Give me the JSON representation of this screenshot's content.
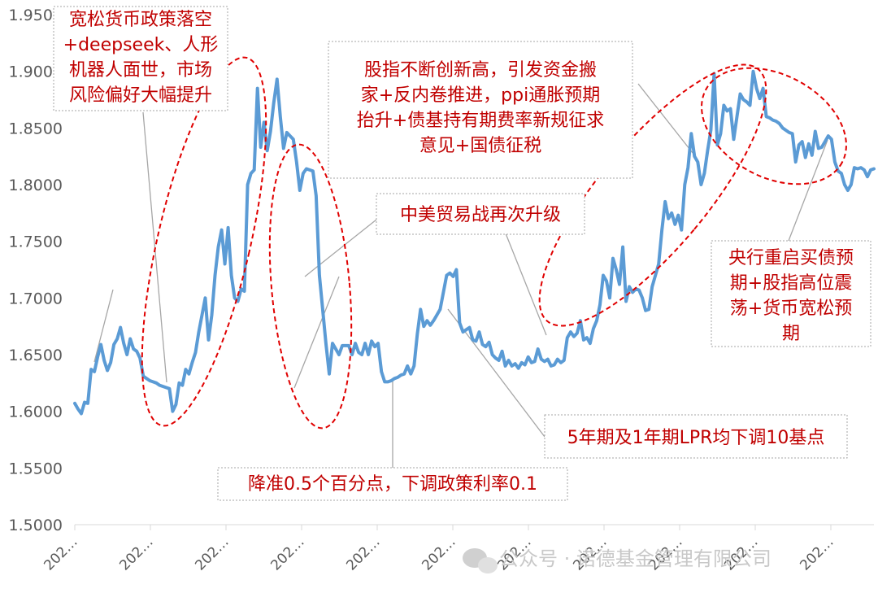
{
  "chart_data": {
    "type": "line",
    "title": "",
    "xlabel": "",
    "ylabel": "",
    "ylim": [
      1.5,
      1.95
    ],
    "y_ticks": [
      "1.5000",
      "1.5500",
      "1.6000",
      "1.6500",
      "1.7000",
      "1.7500",
      "1.8000",
      "1.8500",
      "1.9000",
      "1.9500"
    ],
    "x_ticks": [
      "202…",
      "202…",
      "202…",
      "202…",
      "202…",
      "202…",
      "202…",
      "202…",
      "202…",
      "202…",
      "202…"
    ],
    "grid": false,
    "legend": "none",
    "series": [
      {
        "color": "#5b9bd5",
        "values": [
          1.607,
          1.602,
          1.598,
          1.608,
          1.607,
          1.637,
          1.635,
          1.648,
          1.659,
          1.645,
          1.636,
          1.643,
          1.659,
          1.664,
          1.674,
          1.66,
          1.65,
          1.664,
          1.655,
          1.653,
          1.647,
          1.631,
          1.629,
          1.627,
          1.626,
          1.625,
          1.623,
          1.622,
          1.621,
          1.62,
          1.6,
          1.606,
          1.625,
          1.623,
          1.637,
          1.633,
          1.643,
          1.652,
          1.67,
          1.685,
          1.7,
          1.663,
          1.685,
          1.72,
          1.745,
          1.76,
          1.73,
          1.762,
          1.72,
          1.7,
          1.697,
          1.708,
          1.706,
          1.8,
          1.81,
          1.813,
          1.885,
          1.833,
          1.855,
          1.83,
          1.847,
          1.872,
          1.893,
          1.86,
          1.832,
          1.846,
          1.843,
          1.84,
          1.82,
          1.795,
          1.81,
          1.814,
          1.813,
          1.812,
          1.79,
          1.72,
          1.69,
          1.66,
          1.633,
          1.66,
          1.655,
          1.65,
          1.658,
          1.658,
          1.658,
          1.65,
          1.66,
          1.652,
          1.65,
          1.66,
          1.65,
          1.662,
          1.657,
          1.66,
          1.635,
          1.626,
          1.626,
          1.627,
          1.629,
          1.63,
          1.632,
          1.633,
          1.64,
          1.633,
          1.64,
          1.668,
          1.69,
          1.675,
          1.68,
          1.676,
          1.68,
          1.685,
          1.69,
          1.705,
          1.72,
          1.722,
          1.719,
          1.725,
          1.678,
          1.67,
          1.672,
          1.674,
          1.663,
          1.662,
          1.67,
          1.659,
          1.657,
          1.661,
          1.65,
          1.647,
          1.645,
          1.653,
          1.64,
          1.645,
          1.64,
          1.642,
          1.638,
          1.643,
          1.641,
          1.648,
          1.643,
          1.644,
          1.655,
          1.646,
          1.644,
          1.646,
          1.64,
          1.641,
          1.646,
          1.643,
          1.645,
          1.665,
          1.67,
          1.666,
          1.669,
          1.68,
          1.663,
          1.665,
          1.66,
          1.673,
          1.68,
          1.694,
          1.72,
          1.715,
          1.7,
          1.735,
          1.725,
          1.712,
          1.745,
          1.697,
          1.71,
          1.705,
          1.708,
          1.707,
          1.7,
          1.689,
          1.69,
          1.71,
          1.72,
          1.73,
          1.76,
          1.785,
          1.77,
          1.775,
          1.765,
          1.773,
          1.76,
          1.8,
          1.815,
          1.845,
          1.825,
          1.82,
          1.8,
          1.81,
          1.83,
          1.848,
          1.898,
          1.835,
          1.845,
          1.87,
          1.865,
          1.867,
          1.84,
          1.86,
          1.88,
          1.875,
          1.873,
          1.87,
          1.9,
          1.885,
          1.876,
          1.885,
          1.86,
          1.859,
          1.857,
          1.856,
          1.854,
          1.85,
          1.848,
          1.846,
          1.845,
          1.82,
          1.835,
          1.838,
          1.824,
          1.836,
          1.826,
          1.847,
          1.832,
          1.833,
          1.838,
          1.843,
          1.84,
          1.82,
          1.812,
          1.81,
          1.8,
          1.795,
          1.8,
          1.815,
          1.814,
          1.815,
          1.813,
          1.807,
          1.813,
          1.814
        ]
      }
    ],
    "annotations": [
      {
        "lines": [
          "宽松货币政策落空",
          "+deepseek、人形",
          "机器人面世，市场",
          "风险偏好大幅提升"
        ]
      },
      {
        "lines": [
          "股指不断创新高，引发资金搬",
          "家+反内卷推进，ppi通胀预期",
          "抬升+债基持有期费率新规征求",
          "意见+国债征税"
        ]
      },
      {
        "lines": [
          "中美贸易战再次升级"
        ]
      },
      {
        "lines": [
          "央行重启买债预",
          "期+股指高位震",
          "荡+货币宽松预",
          "期"
        ]
      },
      {
        "lines": [
          "5年期及1年期LPR均下调10基点"
        ]
      },
      {
        "lines": [
          "降准0.5个百分点，下调政策利率0.1"
        ]
      }
    ]
  },
  "watermark": "公众号 · 诺德基金管理有限公司"
}
